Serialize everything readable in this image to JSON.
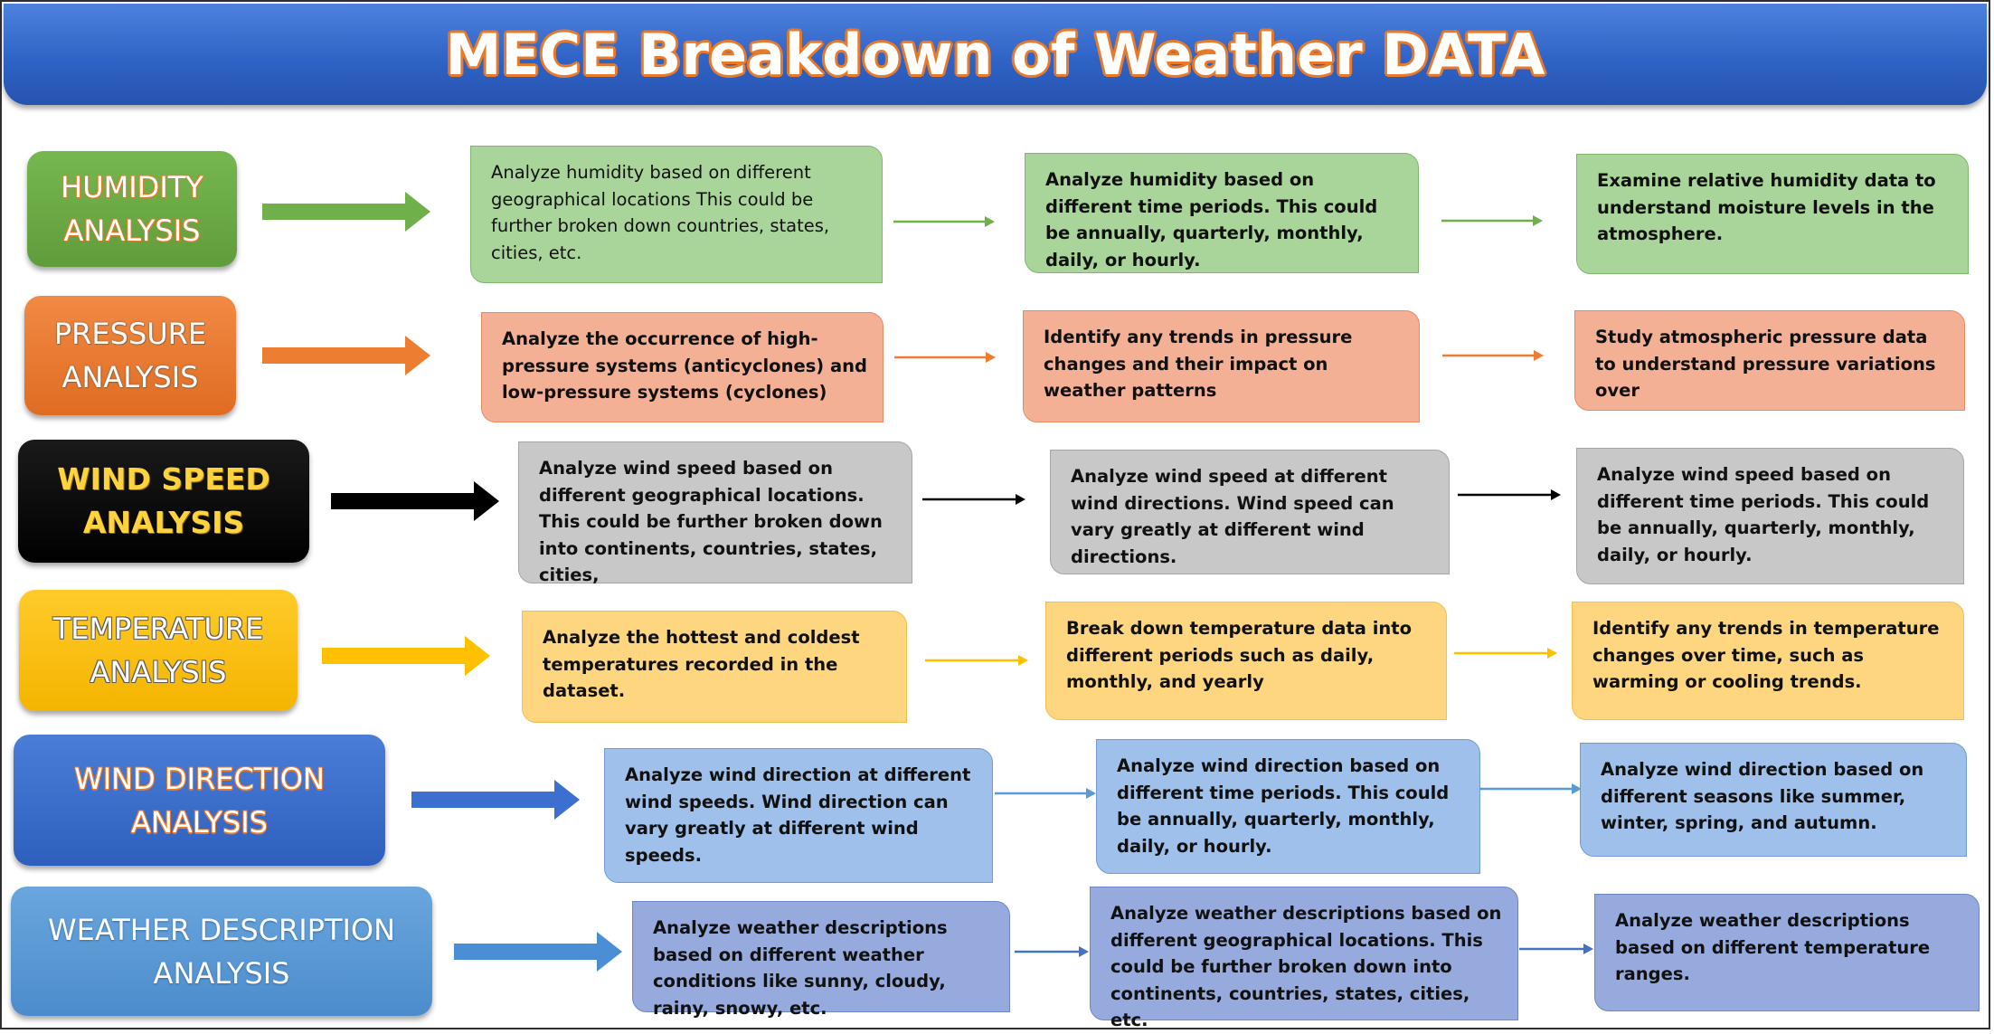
{
  "title": "MECE Breakdown of Weather DATA",
  "colors": {
    "banner": "#3468cc",
    "title_outline": "#e97a2a",
    "humidity": "#70ad47",
    "pressure": "#ed7d31",
    "wind_speed": "#000000",
    "temperature": "#ffc000",
    "wind_direction": "#3c6fcf",
    "weather_description": "#5b9bd5"
  },
  "rows": [
    {
      "id": "humidity",
      "category": "HUMIDITY\nANALYSIS",
      "items": [
        "Analyze humidity based on different geographical locations This could be further broken down countries, states, cities, etc.",
        "Analyze humidity based on different time periods. This could be annually, quarterly, monthly, daily, or hourly.",
        "Examine relative humidity data to understand moisture levels in the atmosphere."
      ]
    },
    {
      "id": "pressure",
      "category": "PRESSURE\nANALYSIS",
      "items": [
        "Analyze the occurrence of high-pressure systems (anticyclones) and low-pressure systems (cyclones)",
        "Identify any trends in pressure changes and their impact on weather patterns",
        "Study atmospheric pressure data to understand pressure variations over"
      ]
    },
    {
      "id": "wind-speed",
      "category": "WIND SPEED\nANALYSIS",
      "items": [
        "Analyze wind speed based on different geographical locations. This could be further broken down into continents, countries, states, cities,",
        "Analyze wind speed at different wind directions. Wind speed can vary greatly at different wind directions.",
        "Analyze wind speed based on different time periods. This could be annually, quarterly, monthly, daily, or hourly."
      ]
    },
    {
      "id": "temperature",
      "category": "TEMPERATURE\nANALYSIS",
      "items": [
        "Analyze the hottest and coldest temperatures recorded in the dataset.",
        "Break down temperature data into different periods such as daily, monthly, and yearly",
        "Identify any trends in temperature changes over time, such as warming or cooling trends."
      ]
    },
    {
      "id": "wind-direction",
      "category": "WIND DIRECTION\nANALYSIS",
      "items": [
        "Analyze wind direction at different wind speeds. Wind direction can vary greatly at different wind speeds.",
        "Analyze wind direction based on different time periods. This could be annually, quarterly, monthly, daily, or hourly.",
        "Analyze wind direction based on different seasons like summer, winter, spring, and autumn."
      ]
    },
    {
      "id": "weather-description",
      "category": "WEATHER DESCRIPTION\nANALYSIS",
      "items": [
        "Analyze weather descriptions based on different weather conditions like sunny, cloudy, rainy, snowy, etc.",
        "Analyze weather descriptions based on different geographical locations. This could be further broken down into continents, countries, states, cities, etc.",
        "Analyze weather descriptions based on different temperature ranges."
      ]
    }
  ]
}
